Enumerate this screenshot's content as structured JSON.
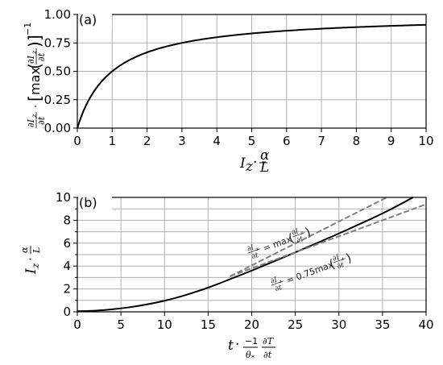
{
  "chart_data": [
    {
      "type": "line",
      "panel_label": "(a)",
      "xlabel": "I_z · α/L",
      "ylabel": "∂I_z/∂t · [max(∂I_z/∂t)]⁻¹",
      "xlim": [
        0,
        10
      ],
      "ylim": [
        0,
        1
      ],
      "xticks": [
        "0",
        "1",
        "2",
        "3",
        "4",
        "5",
        "6",
        "7",
        "8",
        "9",
        "10"
      ],
      "yticks": [
        "0.00",
        "0.25",
        "0.50",
        "0.75",
        "1.00"
      ],
      "grid": true,
      "series": [
        {
          "style": "solid-black",
          "x": [
            0,
            0.1,
            0.25,
            0.5,
            0.75,
            1,
            1.5,
            2,
            2.5,
            3,
            4,
            5,
            6,
            7,
            8,
            9,
            10
          ],
          "y": [
            0,
            0.09,
            0.2,
            0.33,
            0.43,
            0.5,
            0.6,
            0.667,
            0.714,
            0.75,
            0.8,
            0.833,
            0.857,
            0.875,
            0.889,
            0.9,
            0.909
          ]
        }
      ]
    },
    {
      "type": "line",
      "panel_label": "(b)",
      "xlabel": "t · (−1/θ*) ∂T/∂t",
      "ylabel": "I_z · α/L",
      "xlim": [
        0,
        40
      ],
      "ylim": [
        0,
        10
      ],
      "xticks": [
        "0",
        "5",
        "10",
        "15",
        "20",
        "25",
        "30",
        "35",
        "40"
      ],
      "yticks": [
        "0",
        "2",
        "4",
        "6",
        "8",
        "10"
      ],
      "grid": true,
      "series": [
        {
          "style": "solid-black",
          "x": [
            0,
            2,
            4,
            6,
            8,
            10,
            12,
            14,
            16,
            17.5,
            20,
            25,
            30,
            35,
            38.5
          ],
          "y": [
            0.05,
            0.1,
            0.22,
            0.4,
            0.65,
            0.97,
            1.37,
            1.85,
            2.4,
            2.85,
            3.6,
            5.2,
            6.85,
            8.6,
            10
          ]
        },
        {
          "style": "dashed-gray",
          "label": "∂I_z/∂t = max(∂I_z/∂t)",
          "x": [
            17.5,
            35.5
          ],
          "y": [
            3.1,
            10
          ]
        },
        {
          "style": "dashed-gray",
          "label": "∂I_z/∂t = 0.75max(∂I_z/∂t)",
          "x": [
            17.5,
            40
          ],
          "y": [
            3.1,
            9.4
          ]
        }
      ]
    }
  ],
  "annotations": {
    "upper_line": "∂I_z/∂t = max(∂I_z/∂t)",
    "lower_line": "∂I_z/∂t = 0.75max(∂I_z/∂t)"
  }
}
